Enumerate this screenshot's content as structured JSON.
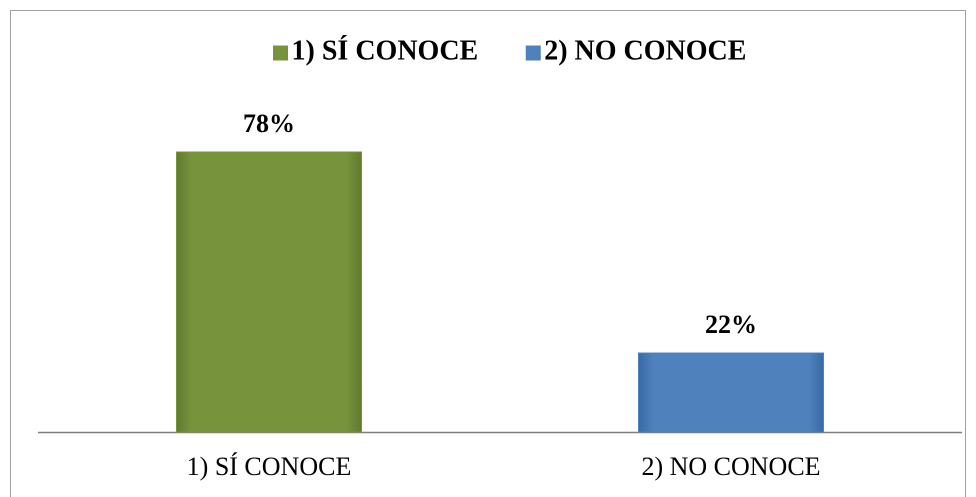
{
  "chart_data": {
    "type": "bar",
    "categories": [
      "1) SÍ CONOCE",
      "2) NO CONOCE"
    ],
    "values": [
      78,
      22
    ],
    "value_labels": [
      "78%",
      "22%"
    ],
    "colors": [
      "#77933c",
      "#4f81bd"
    ],
    "legend": "top"
  }
}
